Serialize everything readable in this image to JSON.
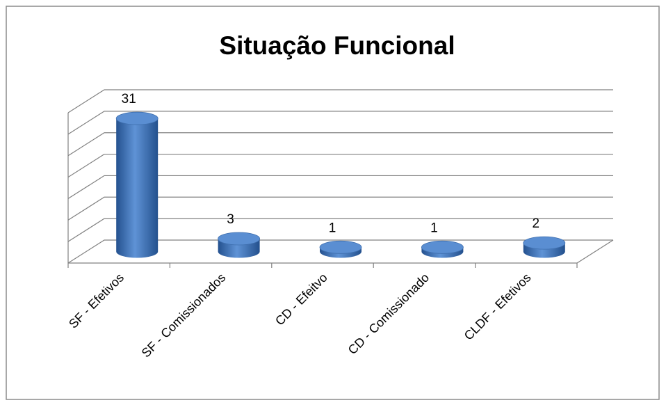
{
  "chart_data": {
    "type": "bar",
    "title": "Situação Funcional",
    "categories": [
      "SF - Efetivos",
      "SF - Comissionados",
      "CD - Efeitvo",
      "CD - Comissionado",
      "CLDF - Efetivos"
    ],
    "values": [
      31,
      3,
      1,
      1,
      2
    ],
    "color": "#4f81bd",
    "ylim": [
      0,
      35
    ],
    "yticks": [
      0,
      5,
      10,
      15,
      20,
      25,
      30,
      35
    ],
    "grid": true
  }
}
